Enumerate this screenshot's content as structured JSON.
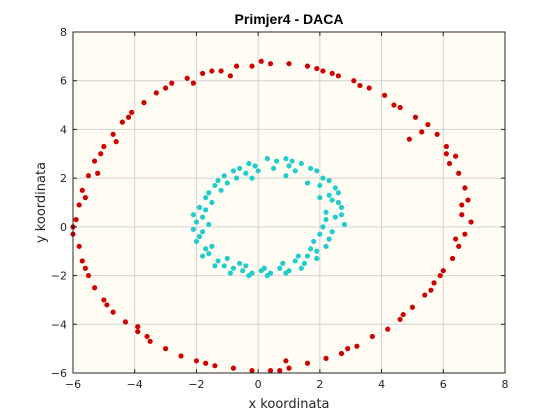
{
  "chart_data": {
    "type": "scatter",
    "title": "Primjer4 - DACA",
    "xlabel": "x koordinata",
    "ylabel": "y koordinata",
    "xlim": [
      -6,
      8
    ],
    "ylim": [
      -6,
      8
    ],
    "xticks": [
      -6,
      -4,
      -2,
      0,
      2,
      4,
      6,
      8
    ],
    "yticks": [
      -6,
      -4,
      -2,
      0,
      2,
      4,
      6,
      8
    ],
    "grid": true,
    "background": "#fffdf3",
    "series": [
      {
        "color": "#cc0000",
        "points": [
          [
            6.9,
            0.2
          ],
          [
            6.8,
            1.1
          ],
          [
            6.7,
            1.6
          ],
          [
            6.5,
            2.2
          ],
          [
            6.4,
            2.9
          ],
          [
            6.1,
            3.3
          ],
          [
            5.8,
            3.8
          ],
          [
            5.5,
            4.2
          ],
          [
            5.1,
            4.5
          ],
          [
            4.6,
            4.9
          ],
          [
            4.1,
            5.4
          ],
          [
            3.6,
            5.7
          ],
          [
            3.1,
            6.0
          ],
          [
            2.6,
            6.2
          ],
          [
            2.1,
            6.4
          ],
          [
            1.6,
            6.6
          ],
          [
            1.0,
            6.7
          ],
          [
            0.4,
            6.7
          ],
          [
            -0.2,
            6.6
          ],
          [
            -0.7,
            6.6
          ],
          [
            -1.2,
            6.4
          ],
          [
            -1.8,
            6.3
          ],
          [
            -2.3,
            6.1
          ],
          [
            -2.8,
            5.9
          ],
          [
            -3.3,
            5.5
          ],
          [
            -3.7,
            5.1
          ],
          [
            -4.1,
            4.7
          ],
          [
            -4.4,
            4.3
          ],
          [
            -4.7,
            3.8
          ],
          [
            -5.0,
            3.3
          ],
          [
            -5.3,
            2.7
          ],
          [
            -5.5,
            2.1
          ],
          [
            -5.7,
            1.5
          ],
          [
            -5.8,
            0.9
          ],
          [
            -5.9,
            0.3
          ],
          [
            -6.0,
            -0.3
          ],
          [
            -5.8,
            -0.8
          ],
          [
            -5.7,
            -1.4
          ],
          [
            -5.5,
            -2.0
          ],
          [
            -5.3,
            -2.5
          ],
          [
            -5.0,
            -3.0
          ],
          [
            -4.7,
            -3.5
          ],
          [
            -4.3,
            -3.9
          ],
          [
            -3.9,
            -4.3
          ],
          [
            -3.5,
            -4.7
          ],
          [
            -3.0,
            -5.0
          ],
          [
            -2.5,
            -5.3
          ],
          [
            -2.0,
            -5.5
          ],
          [
            -1.4,
            -5.7
          ],
          [
            -0.8,
            -5.8
          ],
          [
            -0.2,
            -5.9
          ],
          [
            0.4,
            -5.9
          ],
          [
            1.0,
            -5.8
          ],
          [
            1.6,
            -5.6
          ],
          [
            2.2,
            -5.4
          ],
          [
            2.7,
            -5.2
          ],
          [
            3.2,
            -4.9
          ],
          [
            3.7,
            -4.5
          ],
          [
            4.2,
            -4.2
          ],
          [
            4.6,
            -3.8
          ],
          [
            5.0,
            -3.3
          ],
          [
            5.4,
            -2.8
          ],
          [
            5.7,
            -2.3
          ],
          [
            6.0,
            -1.8
          ],
          [
            6.3,
            -1.3
          ],
          [
            6.5,
            -0.8
          ],
          [
            6.7,
            -0.3
          ],
          [
            6.6,
            0.5
          ],
          [
            6.2,
            2.6
          ],
          [
            5.3,
            3.9
          ],
          [
            4.4,
            5.0
          ],
          [
            3.3,
            5.8
          ],
          [
            1.9,
            6.5
          ],
          [
            0.1,
            6.8
          ],
          [
            -1.5,
            6.4
          ],
          [
            -3.0,
            5.7
          ],
          [
            -4.2,
            4.5
          ],
          [
            -5.1,
            3.0
          ],
          [
            -5.6,
            1.2
          ],
          [
            -6.0,
            0.0
          ],
          [
            -5.6,
            -1.7
          ],
          [
            -4.9,
            -3.2
          ],
          [
            -3.6,
            -4.5
          ],
          [
            -1.7,
            -5.6
          ],
          [
            0.7,
            -5.9
          ],
          [
            2.9,
            -5.0
          ],
          [
            4.7,
            -3.6
          ],
          [
            5.9,
            -2.0
          ],
          [
            6.4,
            -0.5
          ],
          [
            6.1,
            3.0
          ],
          [
            -5.2,
            2.2
          ],
          [
            -3.9,
            -4.1
          ],
          [
            2.4,
            6.3
          ],
          [
            -2.1,
            5.9
          ],
          [
            4.9,
            3.6
          ],
          [
            0.9,
            -5.5
          ],
          [
            -0.9,
            6.2
          ],
          [
            5.6,
            -2.6
          ],
          [
            -4.6,
            3.5
          ],
          [
            6.6,
            0.9
          ]
        ]
      },
      {
        "color": "#22cccc",
        "points": [
          [
            2.8,
            0.1
          ],
          [
            2.7,
            0.8
          ],
          [
            2.6,
            1.4
          ],
          [
            2.3,
            1.9
          ],
          [
            1.9,
            2.3
          ],
          [
            1.4,
            2.6
          ],
          [
            0.9,
            2.8
          ],
          [
            0.3,
            2.8
          ],
          [
            -0.3,
            2.6
          ],
          [
            -0.8,
            2.3
          ],
          [
            -1.3,
            1.9
          ],
          [
            -1.6,
            1.4
          ],
          [
            -1.9,
            0.8
          ],
          [
            -2.0,
            0.2
          ],
          [
            -1.9,
            -0.4
          ],
          [
            -1.7,
            -0.9
          ],
          [
            -1.3,
            -1.4
          ],
          [
            -0.8,
            -1.7
          ],
          [
            -0.2,
            -1.9
          ],
          [
            0.4,
            -1.9
          ],
          [
            1.0,
            -1.8
          ],
          [
            1.5,
            -1.5
          ],
          [
            1.9,
            -1.0
          ],
          [
            2.3,
            -0.5
          ],
          [
            2.5,
            0.4
          ],
          [
            2.4,
            1.1
          ],
          [
            2.0,
            1.7
          ],
          [
            1.2,
            2.3
          ],
          [
            0.5,
            2.4
          ],
          [
            -0.4,
            2.2
          ],
          [
            -1.0,
            1.8
          ],
          [
            -1.5,
            1.0
          ],
          [
            -1.8,
            0.4
          ],
          [
            -1.8,
            -0.2
          ],
          [
            -1.5,
            -0.8
          ],
          [
            -1.0,
            -1.3
          ],
          [
            -0.4,
            -1.6
          ],
          [
            0.2,
            -1.7
          ],
          [
            0.8,
            -1.5
          ],
          [
            1.3,
            -1.2
          ],
          [
            1.8,
            -0.6
          ],
          [
            2.1,
            0.0
          ],
          [
            2.2,
            0.6
          ],
          [
            2.0,
            1.2
          ],
          [
            1.6,
            1.8
          ],
          [
            0.9,
            2.1
          ],
          [
            0.0,
            2.3
          ],
          [
            -0.7,
            2.0
          ],
          [
            -1.2,
            1.5
          ],
          [
            -1.7,
            0.7
          ],
          [
            -2.0,
            -0.6
          ],
          [
            -1.6,
            -1.1
          ],
          [
            -1.1,
            -1.6
          ],
          [
            -0.5,
            -1.8
          ],
          [
            0.1,
            -1.8
          ],
          [
            0.7,
            -1.7
          ],
          [
            1.2,
            -1.4
          ],
          [
            1.7,
            -0.9
          ],
          [
            2.0,
            -0.3
          ],
          [
            2.2,
            0.3
          ],
          [
            2.6,
            1.0
          ],
          [
            2.5,
            1.6
          ],
          [
            2.1,
            2.0
          ],
          [
            1.7,
            2.4
          ],
          [
            1.1,
            2.7
          ],
          [
            0.6,
            2.7
          ],
          [
            -0.1,
            2.5
          ],
          [
            -0.6,
            2.4
          ],
          [
            -1.1,
            2.1
          ],
          [
            -1.4,
            1.7
          ],
          [
            -1.7,
            1.2
          ],
          [
            -2.1,
            0.5
          ],
          [
            -2.1,
            -0.1
          ],
          [
            -1.8,
            -1.2
          ],
          [
            -1.4,
            -1.6
          ],
          [
            -0.9,
            -1.9
          ],
          [
            -0.3,
            -2.0
          ],
          [
            0.3,
            -2.0
          ],
          [
            0.9,
            -1.9
          ],
          [
            1.4,
            -1.7
          ],
          [
            1.9,
            -1.3
          ],
          [
            2.2,
            -0.8
          ],
          [
            2.4,
            -0.2
          ],
          [
            2.7,
            0.5
          ],
          [
            1.0,
            2.5
          ],
          [
            -0.2,
            2.0
          ],
          [
            -1.6,
            0.1
          ],
          [
            -0.6,
            -1.5
          ],
          [
            1.6,
            -1.2
          ],
          [
            2.3,
            1.3
          ]
        ]
      }
    ]
  }
}
